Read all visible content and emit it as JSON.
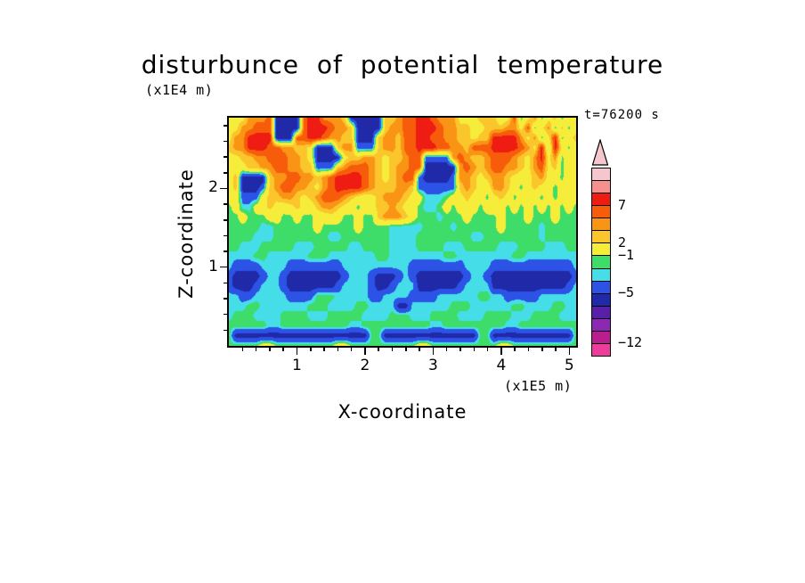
{
  "chart_data": {
    "type": "heatmap",
    "title": "disturbunce of potential temperature",
    "xlabel": "X-coordinate",
    "ylabel": "Z-coordinate",
    "x_axis_unit": "(x1E5 m)",
    "z_axis_unit": "(x1E4 m)",
    "time_label": "t=76200 s",
    "x_range": [
      0,
      5.1
    ],
    "z_range": [
      0,
      2.9
    ],
    "x_major_ticks": [
      1,
      2,
      3,
      4,
      5
    ],
    "z_major_ticks": [
      1,
      2
    ],
    "x_minor_step": 0.2,
    "z_minor_step": 0.2,
    "grid_lines": "off",
    "legend_position": "right-colorbar",
    "color_scale": {
      "boundaries_high_to_low": [
        11,
        9,
        7,
        5,
        3.5,
        2,
        -1,
        -2,
        -3,
        -5,
        -7,
        -8.5,
        -10,
        -12
      ],
      "colors_top_to_bottom": [
        "#F5C6CB",
        "#F4908D",
        "#EE1C12",
        "#F75C0B",
        "#FA9415",
        "#FBC62C",
        "#F6ED3B",
        "#3EDC69",
        "#45DEE8",
        "#2C52E6",
        "#2029A8",
        "#5A1FA8",
        "#8C28B4",
        "#B81E8E",
        "#EE3C9C"
      ],
      "colorbar_labels": [
        {
          "text": "7",
          "boundary": 3
        },
        {
          "text": "2",
          "boundary": 6
        },
        {
          "text": "−1",
          "boundary": 7
        },
        {
          "text": "−5",
          "boundary": 10
        },
        {
          "text": "−12",
          "boundary": 14
        }
      ]
    },
    "grid": {
      "note": "approximate potential-temperature disturbance values (K) on a 52 x 24 grid; rows run from z=2.9e4 m (top) to z=0 (bottom), columns from x=0 to x=5.1e5 m",
      "char_values": {
        "d": -6,
        "e": -4,
        "f": -2.5,
        "g": -1.5,
        "h": 0.3,
        "i": 1.2,
        "j": 2.6,
        "k": 4.2,
        "l": 6,
        "m": 8
      },
      "rows_top_to_bottom": [
        "iiikkklddddlmmkkkjdddddjjkllmmlkkkiiijjjhilgikgijgii",
        "iikklllddddlmmmlkkjddddjkkllmmmlkkjjiijjjkkilgikgjgi",
        "ikkmmmmdddllmmlkkjjdddjkkjllmmllkkjjijjmmmmkikgimgij",
        "jkkmmmllkkjjidddjkkeeejkkjllmmmllkkjlllmmmmlkimgmigi",
        "iijjkklllkkjiddddijjkkjijjklleeeeklkjjklllkjikmikgih",
        "hiijjkkllkkjjeeejklllkjijkklldddddklkjkllkkjiklijghi",
        "ijddddjkkllkkjklmmmmlkjijklleddddekkjijkkjihijkihgih",
        "ijdddejkllkkjiklmmmmlkjjjkkjeeeeeejkjihkkjhgijihghih",
        "hieeeijjkkjijklllkjihijkkkjihfffghijihgijighihghghhh",
        "ghffhijihijihjkkjihghijjkjihgffghghihghihghghghghghg",
        "gghggghhgghgghhihgghggjkkkjhgggfggghgggghggghggghggg",
        "gggggffgggggghggggghggggfffffggggfgggggghgggggfggggg",
        "ggggfffggggggggffgggggggffffggggggggffggggggggfggggg",
        "ggfffgggggfffgggggffggggffffggggfffgggggfffggggfffgg",
        "ffffggffffffgggfffffffggffffffffggffffffffggffffffff",
        "feeeeffffeeeeeeeeffffffffffeeeeeeeeffffeeeeeeeeeeeef",
        "eddddeffeddddddddefffedddefedddddddeffedddddddddddde",
        "edddefffedddddddeffffeddefffddddddeffffdddddddddddef",
        "ffeefffffeeeegggfffffeeffffeeeeffffffggffeeeeeffffff",
        "fffggfffffffgggffffggffffddffffffgggffffffggffffggff",
        "fgggffffggggfffgggggffffgggfffggggffffggggfffggggfff",
        "ggggggffggggggggggffggggggggggffgggggggggffggggggggg",
        "gddddddddddddddddddddggddddddddddddddggddddddddddddg",
        "ggggghhggggggggghhgggggggggghhgggggggggghhgggggggggg"
      ]
    }
  }
}
